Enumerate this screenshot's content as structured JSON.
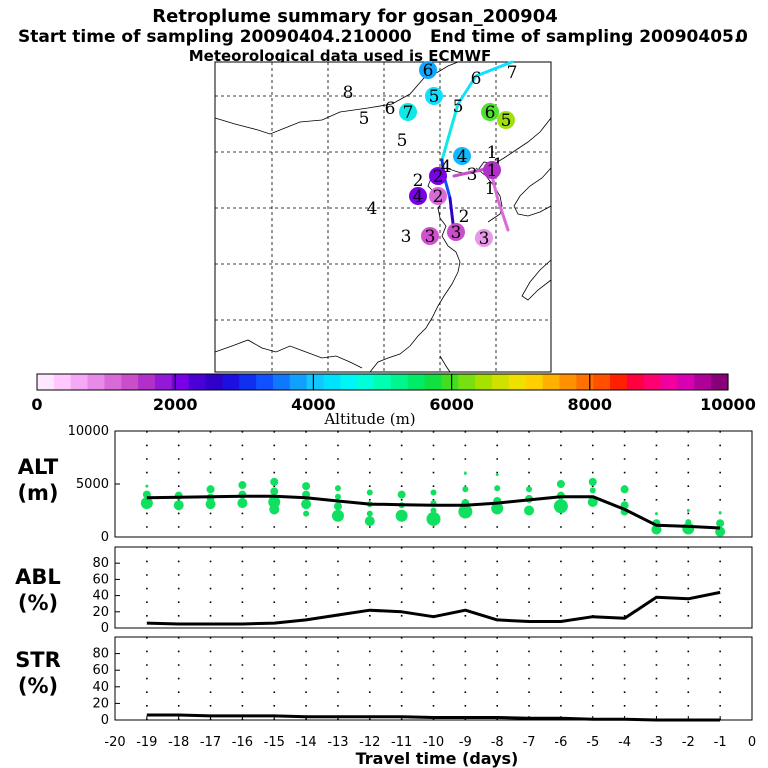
{
  "title": "Retroplume summary for gosan_200904",
  "start_label": "Start time of sampling 20090404.210000",
  "end_label": "End time of sampling 20090405.",
  "end_suffix": "0",
  "met_label": "Meteorological data used is ECMWF",
  "colorbar": {
    "label": "Altitude (m)",
    "ticks": [
      "0",
      "2000",
      "4000",
      "6000",
      "8000",
      "10000"
    ],
    "colors": [
      "#ffe8ff",
      "#ffc9ff",
      "#f5a8f5",
      "#e88ae8",
      "#d96bd9",
      "#c94ec9",
      "#b030c8",
      "#9418d8",
      "#7a00e8",
      "#4c00d8",
      "#3000c8",
      "#1c10e0",
      "#1030f0",
      "#1050ff",
      "#1078ff",
      "#10a0ff",
      "#10c8ff",
      "#00e0ff",
      "#00f5f5",
      "#00ffd8",
      "#00ffb0",
      "#00f58c",
      "#00eb66",
      "#10e040",
      "#40e020",
      "#78e010",
      "#a8e000",
      "#d0e000",
      "#f0e000",
      "#ffd000",
      "#ffb000",
      "#ff9000",
      "#ff7000",
      "#ff5000",
      "#ff2000",
      "#ff0040",
      "#ff0070",
      "#f000a0",
      "#d800b0",
      "#b0009a",
      "#880078"
    ]
  },
  "map": {
    "markers": [
      {
        "label": "8",
        "dot": false,
        "color": ""
      },
      {
        "label": "6",
        "dot": true,
        "color": "#10a8ff"
      },
      {
        "label": "6",
        "dot": false,
        "color": ""
      },
      {
        "label": "7",
        "dot": false,
        "color": ""
      },
      {
        "label": "5",
        "dot": true,
        "color": "#10e0ff"
      },
      {
        "label": "5",
        "dot": false,
        "color": ""
      },
      {
        "label": "5",
        "dot": false,
        "color": ""
      },
      {
        "label": "6",
        "dot": false,
        "color": ""
      },
      {
        "label": "7",
        "dot": true,
        "color": "#10e8e8"
      },
      {
        "label": "6",
        "dot": true,
        "color": "#50e030"
      },
      {
        "label": "5",
        "dot": true,
        "color": "#a0e010"
      },
      {
        "label": "5",
        "dot": false,
        "color": ""
      },
      {
        "label": "4",
        "dot": true,
        "color": "#10b8ff"
      },
      {
        "label": "1",
        "dot": false,
        "color": ""
      },
      {
        "label": "2",
        "dot": true,
        "color": "#7a00e8"
      },
      {
        "label": "2",
        "dot": false,
        "color": ""
      },
      {
        "label": "3",
        "dot": false,
        "color": ""
      },
      {
        "label": "4",
        "dot": false,
        "color": ""
      },
      {
        "label": "1",
        "dot": false,
        "color": ""
      },
      {
        "label": "1",
        "dot": true,
        "color": "#b030c8"
      },
      {
        "label": "1",
        "dot": false,
        "color": ""
      },
      {
        "label": "4",
        "dot": true,
        "color": "#7a00e8"
      },
      {
        "label": "2",
        "dot": true,
        "color": "#d96bd9"
      },
      {
        "label": "4",
        "dot": false,
        "color": ""
      },
      {
        "label": "2",
        "dot": false,
        "color": ""
      },
      {
        "label": "3",
        "dot": true,
        "color": "#c94ec9"
      },
      {
        "label": "3",
        "dot": true,
        "color": "#d050d0"
      },
      {
        "label": "3",
        "dot": true,
        "color": "#e898e8"
      },
      {
        "label": "3",
        "dot": false,
        "color": ""
      }
    ]
  },
  "chart_data": [
    {
      "type": "line",
      "panel": "ALT",
      "ylabel": "ALT\n(m)",
      "ylabel_lines": [
        "ALT",
        "(m)"
      ],
      "ylim": [
        0,
        10000
      ],
      "yticks": [
        "0",
        "5000",
        "10000"
      ],
      "x": [
        -19,
        -18,
        -17,
        -16,
        -15,
        -14,
        -13,
        -12,
        -11,
        -10,
        -9,
        -8,
        -7,
        -6,
        -5,
        -4,
        -3,
        -2,
        -1
      ],
      "series": [
        {
          "name": "median altitude",
          "values": [
            3700,
            3750,
            3800,
            3850,
            3850,
            3700,
            3400,
            3100,
            3050,
            3000,
            3000,
            3200,
            3500,
            3800,
            3800,
            2600,
            1100,
            1000,
            850
          ]
        }
      ],
      "scatter": [
        {
          "x": -19,
          "y": 3200,
          "s": 6
        },
        {
          "x": -19,
          "y": 4000,
          "s": 4
        },
        {
          "x": -19,
          "y": 4800,
          "s": 1.5
        },
        {
          "x": -18,
          "y": 3000,
          "s": 5
        },
        {
          "x": -18,
          "y": 3900,
          "s": 4
        },
        {
          "x": -17,
          "y": 3100,
          "s": 5
        },
        {
          "x": -17,
          "y": 3700,
          "s": 4
        },
        {
          "x": -17,
          "y": 4500,
          "s": 4
        },
        {
          "x": -16,
          "y": 3200,
          "s": 5
        },
        {
          "x": -16,
          "y": 4000,
          "s": 4
        },
        {
          "x": -16,
          "y": 4900,
          "s": 4
        },
        {
          "x": -15,
          "y": 2600,
          "s": 5
        },
        {
          "x": -15,
          "y": 3300,
          "s": 6
        },
        {
          "x": -15,
          "y": 4300,
          "s": 4
        },
        {
          "x": -15,
          "y": 5200,
          "s": 4
        },
        {
          "x": -14,
          "y": 2200,
          "s": 3
        },
        {
          "x": -14,
          "y": 3100,
          "s": 5
        },
        {
          "x": -14,
          "y": 4000,
          "s": 4
        },
        {
          "x": -14,
          "y": 4800,
          "s": 4
        },
        {
          "x": -13,
          "y": 2000,
          "s": 6
        },
        {
          "x": -13,
          "y": 2900,
          "s": 4
        },
        {
          "x": -13,
          "y": 3800,
          "s": 3
        },
        {
          "x": -13,
          "y": 4600,
          "s": 3
        },
        {
          "x": -12,
          "y": 1500,
          "s": 5
        },
        {
          "x": -12,
          "y": 2200,
          "s": 3
        },
        {
          "x": -12,
          "y": 3100,
          "s": 3
        },
        {
          "x": -12,
          "y": 4200,
          "s": 3
        },
        {
          "x": -11,
          "y": 2000,
          "s": 6
        },
        {
          "x": -11,
          "y": 3000,
          "s": 3
        },
        {
          "x": -11,
          "y": 4000,
          "s": 4
        },
        {
          "x": -10,
          "y": 1700,
          "s": 7
        },
        {
          "x": -10,
          "y": 2500,
          "s": 3
        },
        {
          "x": -10,
          "y": 3200,
          "s": 3
        },
        {
          "x": -10,
          "y": 4200,
          "s": 3
        },
        {
          "x": -9,
          "y": 2400,
          "s": 7
        },
        {
          "x": -9,
          "y": 3200,
          "s": 4
        },
        {
          "x": -9,
          "y": 4500,
          "s": 3
        },
        {
          "x": -9,
          "y": 6000,
          "s": 1.5
        },
        {
          "x": -8,
          "y": 2700,
          "s": 6
        },
        {
          "x": -8,
          "y": 3400,
          "s": 4
        },
        {
          "x": -8,
          "y": 4600,
          "s": 3
        },
        {
          "x": -8,
          "y": 5900,
          "s": 1.5
        },
        {
          "x": -7,
          "y": 2500,
          "s": 5
        },
        {
          "x": -7,
          "y": 3600,
          "s": 4
        },
        {
          "x": -7,
          "y": 4500,
          "s": 3
        },
        {
          "x": -6,
          "y": 2900,
          "s": 7
        },
        {
          "x": -6,
          "y": 3900,
          "s": 4
        },
        {
          "x": -6,
          "y": 5000,
          "s": 4
        },
        {
          "x": -5,
          "y": 3300,
          "s": 5
        },
        {
          "x": -5,
          "y": 4400,
          "s": 3
        },
        {
          "x": -5,
          "y": 5200,
          "s": 4
        },
        {
          "x": -4,
          "y": 2400,
          "s": 4
        },
        {
          "x": -4,
          "y": 3000,
          "s": 4
        },
        {
          "x": -4,
          "y": 4500,
          "s": 4
        },
        {
          "x": -3,
          "y": 700,
          "s": 5
        },
        {
          "x": -3,
          "y": 1300,
          "s": 4
        },
        {
          "x": -3,
          "y": 2200,
          "s": 1.5
        },
        {
          "x": -2,
          "y": 800,
          "s": 6
        },
        {
          "x": -2,
          "y": 1400,
          "s": 3
        },
        {
          "x": -2,
          "y": 2500,
          "s": 1.5
        },
        {
          "x": -1,
          "y": 500,
          "s": 5
        },
        {
          "x": -1,
          "y": 1300,
          "s": 4
        },
        {
          "x": -1,
          "y": 2300,
          "s": 1.5
        }
      ]
    },
    {
      "type": "line",
      "panel": "ABL",
      "ylabel": "ABL\n(%)",
      "ylabel_lines": [
        "ABL",
        "(%)"
      ],
      "ylim": [
        0,
        100
      ],
      "yticks": [
        "0",
        "20",
        "40",
        "60",
        "80"
      ],
      "x": [
        -19,
        -18,
        -17,
        -16,
        -15,
        -14,
        -13,
        -12,
        -11,
        -10,
        -9,
        -8,
        -7,
        -6,
        -5,
        -4,
        -3,
        -2,
        -1
      ],
      "series": [
        {
          "name": "ABL fraction",
          "values": [
            6,
            5,
            5,
            5,
            6,
            10,
            16,
            22,
            20,
            14,
            22,
            10,
            8,
            8,
            14,
            12,
            38,
            36,
            44
          ]
        }
      ]
    },
    {
      "type": "line",
      "panel": "STR",
      "ylabel": "STR\n(%)",
      "ylabel_lines": [
        "STR",
        "(%)"
      ],
      "ylim": [
        0,
        100
      ],
      "yticks": [
        "0",
        "20",
        "40",
        "60",
        "80"
      ],
      "x": [
        -19,
        -18,
        -17,
        -16,
        -15,
        -14,
        -13,
        -12,
        -11,
        -10,
        -9,
        -8,
        -7,
        -6,
        -5,
        -4,
        -3,
        -2,
        -1
      ],
      "series": [
        {
          "name": "STR fraction",
          "values": [
            6,
            6,
            5,
            5,
            5,
            4,
            4,
            4,
            4,
            3,
            3,
            3,
            2,
            2,
            1,
            1,
            0,
            0,
            0
          ]
        }
      ],
      "xlabel": "Travel time (days)",
      "xlim": [
        -20,
        0
      ],
      "xticks": [
        "-20",
        "-19",
        "-18",
        "-17",
        "-16",
        "-15",
        "-14",
        "-13",
        "-12",
        "-11",
        "-10",
        "-9",
        "-8",
        "-7",
        "-6",
        "-5",
        "-4",
        "-3",
        "-2",
        "-1",
        "0"
      ]
    }
  ]
}
